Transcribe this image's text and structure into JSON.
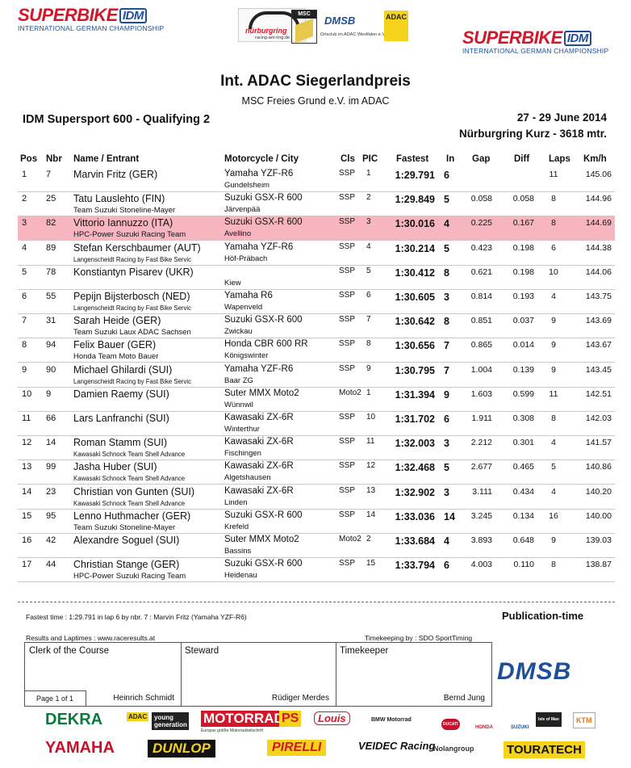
{
  "header": {
    "left_logo": {
      "brand": "SUPERBIKE",
      "badge": "IDM",
      "sub": "INTERNATIONAL GERMAN CHAMPIONSHIP"
    },
    "right_logo": {
      "brand": "SUPERBIKE",
      "badge": "IDM",
      "sub": "INTERNATIONAL GERMAN CHAMPIONSHIP"
    },
    "center_logos": {
      "nurburgring": "nürburgring",
      "nurburgring_url": "racing-am-ring.de",
      "msc": "MSC",
      "dmsb": "DMSB",
      "ortsclub": "Ortsclub im ADAC Westfalen e.V.",
      "adac": "ADAC"
    }
  },
  "event": {
    "title": "Int. ADAC Siegerlandpreis",
    "organizer": "MSC  Freies Grund e.V. im ADAC",
    "session": "IDM Supersport 600 - Qualifying 2",
    "date": "27 - 29 June 2014",
    "track": "Nürburgring Kurz - 3618 mtr."
  },
  "table": {
    "headers": {
      "pos": "Pos",
      "nbr": "Nbr",
      "name": "Name / Entrant",
      "moto": "Motorcycle / City",
      "cls": "Cls",
      "pic": "PIC",
      "fastest": "Fastest",
      "in": "In",
      "gap": "Gap",
      "diff": "Diff",
      "laps": "Laps",
      "kmh": "Km/h"
    },
    "rows": [
      {
        "pos": "1",
        "nbr": "7",
        "name": "Marvin Fritz (GER)",
        "team": "",
        "moto": "Yamaha YZF-R6",
        "city": "Gundelsheim",
        "cls": "SSP",
        "pic": "1",
        "fastest": "1:29.791",
        "in": "6",
        "gap": "",
        "diff": "",
        "laps": "11",
        "kmh": "145.06",
        "highlight": false,
        "small_team": false
      },
      {
        "pos": "2",
        "nbr": "25",
        "name": "Tatu Lauslehto (FIN)",
        "team": "Team Suzuki Stoneline-Mayer",
        "moto": "Suzuki GSX-R 600",
        "city": "Järvenpää",
        "cls": "SSP",
        "pic": "2",
        "fastest": "1:29.849",
        "in": "5",
        "gap": "0.058",
        "diff": "0.058",
        "laps": "8",
        "kmh": "144.96",
        "highlight": false,
        "small_team": false
      },
      {
        "pos": "3",
        "nbr": "82",
        "name": "Vittorio Iannuzzo (ITA)",
        "team": "HPC-Power Suzuki Racing Team",
        "moto": "Suzuki GSX-R 600",
        "city": "Avellino",
        "cls": "SSP",
        "pic": "3",
        "fastest": "1:30.016",
        "in": "4",
        "gap": "0.225",
        "diff": "0.167",
        "laps": "8",
        "kmh": "144.69",
        "highlight": true,
        "small_team": false
      },
      {
        "pos": "4",
        "nbr": "89",
        "name": "Stefan Kerschbaumer (AUT)",
        "team": "Langenscheidt Racing by Fast Bike Servic",
        "moto": "Yamaha YZF-R6",
        "city": "Höf-Präbach",
        "cls": "SSP",
        "pic": "4",
        "fastest": "1:30.214",
        "in": "5",
        "gap": "0.423",
        "diff": "0.198",
        "laps": "6",
        "kmh": "144.38",
        "highlight": false,
        "small_team": true
      },
      {
        "pos": "5",
        "nbr": "78",
        "name": "Konstiantyn Pisarev (UKR)",
        "team": "",
        "moto": "",
        "city": "Kiew",
        "cls": "SSP",
        "pic": "5",
        "fastest": "1:30.412",
        "in": "8",
        "gap": "0.621",
        "diff": "0.198",
        "laps": "10",
        "kmh": "144.06",
        "highlight": false,
        "small_team": false
      },
      {
        "pos": "6",
        "nbr": "55",
        "name": "Pepijn Bijsterbosch (NED)",
        "team": "Langenscheidt Racing by Fast Bike Servic",
        "moto": "Yamaha R6",
        "city": "Wapenveld",
        "cls": "SSP",
        "pic": "6",
        "fastest": "1:30.605",
        "in": "3",
        "gap": "0.814",
        "diff": "0.193",
        "laps": "4",
        "kmh": "143.75",
        "highlight": false,
        "small_team": true
      },
      {
        "pos": "7",
        "nbr": "31",
        "name": "Sarah Heide (GER)",
        "team": "Team Suzuki Laux ADAC Sachsen",
        "moto": "Suzuki GSX-R 600",
        "city": "Zwickau",
        "cls": "SSP",
        "pic": "7",
        "fastest": "1:30.642",
        "in": "8",
        "gap": "0.851",
        "diff": "0.037",
        "laps": "9",
        "kmh": "143.69",
        "highlight": false,
        "small_team": false
      },
      {
        "pos": "8",
        "nbr": "94",
        "name": "Felix Bauer (GER)",
        "team": "Honda Team Moto Bauer",
        "moto": "Honda CBR 600 RR",
        "city": "Königswinter",
        "cls": "SSP",
        "pic": "8",
        "fastest": "1:30.656",
        "in": "7",
        "gap": "0.865",
        "diff": "0.014",
        "laps": "9",
        "kmh": "143.67",
        "highlight": false,
        "small_team": false
      },
      {
        "pos": "9",
        "nbr": "90",
        "name": "Michael Ghilardi (SUI)",
        "team": "Langenscheidt Racing by Fast Bike Servic",
        "moto": "Yamaha YZF-R6",
        "city": "Baar ZG",
        "cls": "SSP",
        "pic": "9",
        "fastest": "1:30.795",
        "in": "7",
        "gap": "1.004",
        "diff": "0.139",
        "laps": "9",
        "kmh": "143.45",
        "highlight": false,
        "small_team": true
      },
      {
        "pos": "10",
        "nbr": "9",
        "name": "Damien Raemy (SUI)",
        "team": "",
        "moto": "Suter MMX Moto2",
        "city": "Wünnwil",
        "cls": "Moto2",
        "pic": "1",
        "fastest": "1:31.394",
        "in": "9",
        "gap": "1.603",
        "diff": "0.599",
        "laps": "11",
        "kmh": "142.51",
        "highlight": false,
        "small_team": false
      },
      {
        "pos": "11",
        "nbr": "66",
        "name": "Lars Lanfranchi (SUI)",
        "team": "",
        "moto": "Kawasaki ZX-6R",
        "city": "Winterthur",
        "cls": "SSP",
        "pic": "10",
        "fastest": "1:31.702",
        "in": "6",
        "gap": "1.911",
        "diff": "0.308",
        "laps": "8",
        "kmh": "142.03",
        "highlight": false,
        "small_team": false
      },
      {
        "pos": "12",
        "nbr": "14",
        "name": "Roman Stamm (SUI)",
        "team": "Kawasaki Schnock Team Shell Advance",
        "moto": "Kawasaki ZX-6R",
        "city": "Fischingen",
        "cls": "SSP",
        "pic": "11",
        "fastest": "1:32.003",
        "in": "3",
        "gap": "2.212",
        "diff": "0.301",
        "laps": "4",
        "kmh": "141.57",
        "highlight": false,
        "small_team": true
      },
      {
        "pos": "13",
        "nbr": "99",
        "name": "Jasha Huber (SUI)",
        "team": "Kawasaki Schnock Team Shell Advance",
        "moto": "Kawasaki ZX-6R",
        "city": "Algetshausen",
        "cls": "SSP",
        "pic": "12",
        "fastest": "1:32.468",
        "in": "5",
        "gap": "2.677",
        "diff": "0.465",
        "laps": "5",
        "kmh": "140.86",
        "highlight": false,
        "small_team": true
      },
      {
        "pos": "14",
        "nbr": "23",
        "name": "Christian von Gunten (SUI)",
        "team": "Kawasaki Schnock Team Shell Advance",
        "moto": "Kawasaki ZX-6R",
        "city": "Linden",
        "cls": "SSP",
        "pic": "13",
        "fastest": "1:32.902",
        "in": "3",
        "gap": "3.111",
        "diff": "0.434",
        "laps": "4",
        "kmh": "140.20",
        "highlight": false,
        "small_team": true
      },
      {
        "pos": "15",
        "nbr": "95",
        "name": "Lenno Huthmacher (GER)",
        "team": "Team Suzuki Stoneline-Mayer",
        "moto": "Suzuki GSX-R 600",
        "city": "Krefeld",
        "cls": "SSP",
        "pic": "14",
        "fastest": "1:33.036",
        "in": "14",
        "gap": "3.245",
        "diff": "0.134",
        "laps": "16",
        "kmh": "140.00",
        "highlight": false,
        "small_team": false
      },
      {
        "pos": "16",
        "nbr": "42",
        "name": "Alexandre Soguel (SUI)",
        "team": "",
        "moto": "Suter MMX Moto2",
        "city": "Bassins",
        "cls": "Moto2",
        "pic": "2",
        "fastest": "1:33.684",
        "in": "4",
        "gap": "3.893",
        "diff": "0.648",
        "laps": "9",
        "kmh": "139.03",
        "highlight": false,
        "small_team": false
      },
      {
        "pos": "17",
        "nbr": "44",
        "name": "Christian Stange (GER)",
        "team": "HPC-Power Suzuki Racing Team",
        "moto": "Suzuki GSX-R 600",
        "city": "Heidenau",
        "cls": "SSP",
        "pic": "15",
        "fastest": "1:33.794",
        "in": "6",
        "gap": "4.003",
        "diff": "0.110",
        "laps": "8",
        "kmh": "138.87",
        "highlight": false,
        "small_team": false
      }
    ]
  },
  "footer": {
    "fastest_time": "Fastest time :  1:29.791  in lap  6  by nbr. 7 : Marvin Fritz (Yamaha YZF-R6)",
    "results_url": "Results and Laptimes : www.raceresults.at",
    "timekeeping": "Timekeeping by :  SDO SportTiming",
    "publication": "Publication-time",
    "clerk_label": "Clerk of the Course",
    "clerk_name": "Heinrich Schmidt",
    "steward_label": "Steward",
    "steward_name": "Rüdiger Merdes",
    "timekeeper_label": "Timekeeper",
    "timekeeper_name": "Bernd Jung",
    "page": "Page 1 of 1",
    "dmsb": "DMSB"
  },
  "sponsors": {
    "row1": [
      "DEKRA",
      "ADAC",
      "young generation",
      "MOTORRAD",
      "PS",
      "Louis",
      "BMW Motorrad",
      "DUCATI",
      "HONDA",
      "SUZUKI",
      "Isle of Man",
      "KTM"
    ],
    "row2": [
      "YAMAHA",
      "DUNLOP",
      "PIRELLI",
      "VEIDEC Racing",
      "Nolangroup",
      "TOURATECH"
    ],
    "motorrad_sub": "Europas größte Motorradzeitschrift"
  },
  "colors": {
    "brand_red": "#d3172a",
    "brand_blue": "#1d4f9b",
    "highlight_row": "#f7b6bf"
  }
}
